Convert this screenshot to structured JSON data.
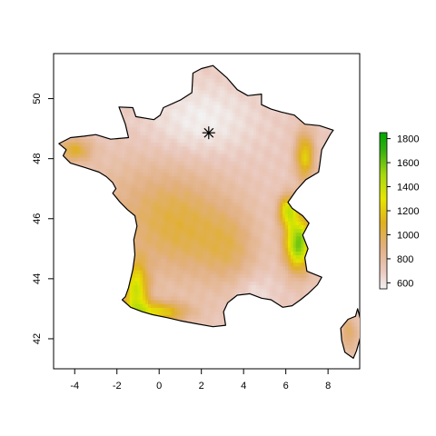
{
  "map": {
    "x_axis": {
      "min": -5,
      "max": 9.5,
      "ticks": [
        -4,
        -2,
        0,
        2,
        4,
        6,
        8
      ]
    },
    "y_axis": {
      "min": 41,
      "max": 51.5,
      "ticks": [
        42,
        44,
        46,
        48,
        50
      ]
    },
    "marker": {
      "name": "asterisk-marker",
      "lon": 2.35,
      "lat": 48.86
    },
    "colorbar": {
      "min": 550,
      "max": 1850,
      "ticks": [
        600,
        800,
        1000,
        1200,
        1400,
        1600,
        1800
      ],
      "stops": [
        {
          "value": 550,
          "color": "#f2f2f2"
        },
        {
          "value": 700,
          "color": "#eac8bd"
        },
        {
          "value": 900,
          "color": "#e2b080"
        },
        {
          "value": 1100,
          "color": "#e0b020"
        },
        {
          "value": 1300,
          "color": "#e6e600"
        },
        {
          "value": 1500,
          "color": "#a6d810"
        },
        {
          "value": 1700,
          "color": "#36b010"
        },
        {
          "value": 1850,
          "color": "#00a600"
        }
      ]
    },
    "colors": {
      "outline": "#000000",
      "background": "#ffffff"
    }
  }
}
